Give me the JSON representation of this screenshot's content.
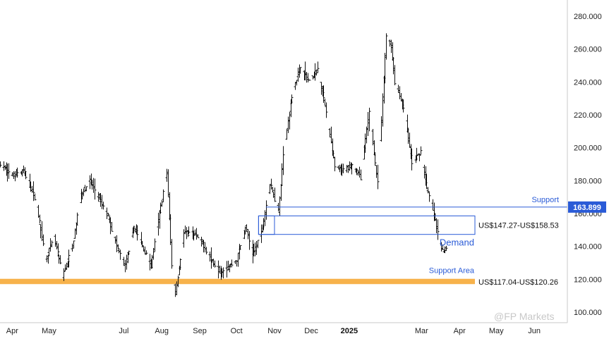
{
  "chart_data": {
    "type": "ohlc",
    "y_axis": {
      "ticks": [
        "280.000",
        "260.000",
        "240.000",
        "220.000",
        "200.000",
        "180.000",
        "160.000",
        "140.000",
        "120.000",
        "100.000"
      ],
      "ylim": [
        100,
        280
      ],
      "position": "right"
    },
    "x_axis": {
      "ticks": [
        {
          "label": "Apr",
          "month": "2024-04"
        },
        {
          "label": "May",
          "month": "2024-05"
        },
        {
          "label": "Jul",
          "month": "2024-07"
        },
        {
          "label": "Aug",
          "month": "2024-08"
        },
        {
          "label": "Sep",
          "month": "2024-09"
        },
        {
          "label": "Oct",
          "month": "2024-10"
        },
        {
          "label": "Nov",
          "month": "2024-11"
        },
        {
          "label": "Dec",
          "month": "2024-12"
        },
        {
          "label": "2025",
          "month": "2025-01"
        },
        {
          "label": "Mar",
          "month": "2025-03"
        },
        {
          "label": "Apr",
          "month": "2025-04"
        },
        {
          "label": "May",
          "month": "2025-05"
        },
        {
          "label": "Jun",
          "month": "2025-06"
        }
      ],
      "range": [
        "2024-03-22",
        "2025-06-28"
      ]
    },
    "price_path": [
      [
        "2024-03-22",
        190
      ],
      [
        "2024-04-01",
        183
      ],
      [
        "2024-04-10",
        186
      ],
      [
        "2024-04-20",
        168
      ],
      [
        "2024-04-28",
        132
      ],
      [
        "2024-05-05",
        145
      ],
      [
        "2024-05-12",
        122
      ],
      [
        "2024-05-20",
        140
      ],
      [
        "2024-05-27",
        172
      ],
      [
        "2024-06-03",
        180
      ],
      [
        "2024-06-10",
        170
      ],
      [
        "2024-06-18",
        158
      ],
      [
        "2024-06-25",
        140
      ],
      [
        "2024-07-02",
        128
      ],
      [
        "2024-07-09",
        152
      ],
      [
        "2024-07-16",
        140
      ],
      [
        "2024-07-23",
        128
      ],
      [
        "2024-07-30",
        160
      ],
      [
        "2024-08-05",
        185
      ],
      [
        "2024-08-09",
        128
      ],
      [
        "2024-08-12",
        112
      ],
      [
        "2024-08-19",
        148
      ],
      [
        "2024-08-26",
        148
      ],
      [
        "2024-09-03",
        142
      ],
      [
        "2024-09-10",
        132
      ],
      [
        "2024-09-17",
        125
      ],
      [
        "2024-09-24",
        127
      ],
      [
        "2024-10-01",
        132
      ],
      [
        "2024-10-08",
        152
      ],
      [
        "2024-10-14",
        135
      ],
      [
        "2024-10-21",
        148
      ],
      [
        "2024-10-28",
        178
      ],
      [
        "2024-11-04",
        162
      ],
      [
        "2024-11-08",
        195
      ],
      [
        "2024-11-15",
        232
      ],
      [
        "2024-11-22",
        250
      ],
      [
        "2024-11-29",
        240
      ],
      [
        "2024-12-06",
        248
      ],
      [
        "2024-12-13",
        222
      ],
      [
        "2024-12-20",
        188
      ],
      [
        "2024-12-27",
        186
      ],
      [
        "2025-01-03",
        190
      ],
      [
        "2025-01-10",
        182
      ],
      [
        "2025-01-17",
        222
      ],
      [
        "2025-01-24",
        178
      ],
      [
        "2025-01-31",
        268
      ],
      [
        "2025-02-04",
        262
      ],
      [
        "2025-02-07",
        240
      ],
      [
        "2025-02-14",
        225
      ],
      [
        "2025-02-21",
        190
      ],
      [
        "2025-02-28",
        198
      ],
      [
        "2025-03-05",
        175
      ],
      [
        "2025-03-10",
        163
      ],
      [
        "2025-03-14",
        148
      ],
      [
        "2025-03-18",
        137
      ],
      [
        "2025-03-21",
        138
      ]
    ],
    "support_line": {
      "value": 163.899,
      "label": "Support"
    },
    "demand_zone": {
      "low": 147.27,
      "high": 158.53,
      "label": "Demand",
      "range_label": "US$147.27-US$158.53"
    },
    "support_area": {
      "low": 117.04,
      "high": 120.26,
      "label": "Support Area",
      "range_label": "US$117.04-US$120.26"
    },
    "colors": {
      "bars": "#111111",
      "annotation_blue": "#2a5bd7",
      "support_area_fill": "#f7b24b",
      "price_tag_bg": "#2a5bd7"
    },
    "price_tag": "163.899",
    "watermark": "@FP Markets"
  }
}
